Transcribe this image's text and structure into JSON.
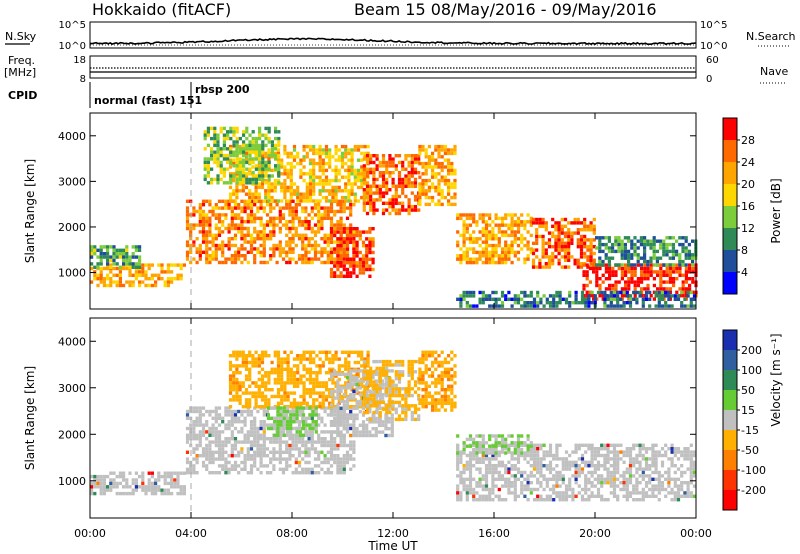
{
  "header": {
    "radar": "Hokkaido (fitACF)",
    "beam": "Beam 15 08/May/2016 - 09/May/2016"
  },
  "summary": {
    "nsky_label": "N.Sky",
    "nsky_ticks": [
      "10^5",
      "10^0"
    ],
    "nsearch_label": "N.Search",
    "nsearch_ticks": [
      "10^5",
      "10^0"
    ],
    "freq_label_line1": "Freq.",
    "freq_label_line2": "[MHz]",
    "freq_ticks": [
      "18",
      "8"
    ],
    "nave_label": "Nave",
    "nave_ticks": [
      "60",
      "0"
    ],
    "cpid_label": "CPID",
    "cpid_segments": [
      {
        "label": "normal (fast) 151",
        "start_hour": 0,
        "end_hour": 3.9
      },
      {
        "label": "rbsp 200",
        "start_hour": 3.9,
        "end_hour": 24
      }
    ]
  },
  "colors": {
    "power": [
      "#0000ff",
      "#1f4e9a",
      "#2e8b57",
      "#7ccd3c",
      "#ffd700",
      "#ffa500",
      "#ff6a00",
      "#ff0000"
    ],
    "velocity": [
      "#1a2fb0",
      "#2f5fa0",
      "#2e8b57",
      "#66cc33",
      "#c0c0c0",
      "#ffb000",
      "#ff7f00",
      "#ff3300",
      "#ff0000"
    ],
    "ground_scatter": "#c0c0c0"
  },
  "chart_data": [
    {
      "type": "heatmap",
      "panel": "power",
      "ylabel": "Slant Range [km]",
      "yticks": [
        "1000",
        "2000",
        "3000",
        "4000"
      ],
      "ylim": [
        200,
        4500
      ],
      "xlim_hours": [
        0,
        24
      ],
      "colorbar_label": "Power [dB]",
      "colorbar_ticks": [
        "28",
        "24",
        "20",
        "16",
        "12",
        "8",
        "4"
      ],
      "colorbar_range": [
        0,
        32
      ],
      "scatter_regions": [
        {
          "hour_start": 0.0,
          "hour_end": 3.8,
          "range_min": 700,
          "range_max": 1200,
          "level": 22
        },
        {
          "hour_start": 0.0,
          "hour_end": 2.0,
          "range_min": 1150,
          "range_max": 1600,
          "level": 12
        },
        {
          "hour_start": 3.8,
          "hour_end": 10.5,
          "range_min": 1200,
          "range_max": 2600,
          "level": 24
        },
        {
          "hour_start": 5.5,
          "hour_end": 11.0,
          "range_min": 2600,
          "range_max": 3800,
          "level": 20
        },
        {
          "hour_start": 4.5,
          "hour_end": 7.5,
          "range_min": 3000,
          "range_max": 4200,
          "level": 14
        },
        {
          "hour_start": 9.5,
          "hour_end": 11.2,
          "range_min": 900,
          "range_max": 2000,
          "level": 28
        },
        {
          "hour_start": 10.8,
          "hour_end": 13.0,
          "range_min": 2300,
          "range_max": 3600,
          "level": 26
        },
        {
          "hour_start": 13.0,
          "hour_end": 14.4,
          "range_min": 2500,
          "range_max": 3800,
          "level": 22
        },
        {
          "hour_start": 14.5,
          "hour_end": 17.5,
          "range_min": 1200,
          "range_max": 2300,
          "level": 22
        },
        {
          "hour_start": 17.5,
          "hour_end": 20.0,
          "range_min": 1100,
          "range_max": 2200,
          "level": 26
        },
        {
          "hour_start": 19.5,
          "hour_end": 24.0,
          "range_min": 400,
          "range_max": 1200,
          "level": 30
        },
        {
          "hour_start": 20.0,
          "hour_end": 24.0,
          "range_min": 1200,
          "range_max": 1800,
          "level": 10
        },
        {
          "hour_start": 14.5,
          "hour_end": 24.0,
          "range_min": 250,
          "range_max": 600,
          "level": 8
        }
      ]
    },
    {
      "type": "heatmap",
      "panel": "velocity",
      "ylabel": "Slant Range [km]",
      "yticks": [
        "1000",
        "2000",
        "3000",
        "4000"
      ],
      "ylim": [
        200,
        4500
      ],
      "xlim_hours": [
        0,
        24
      ],
      "xticks": [
        "00:00",
        "04:00",
        "08:00",
        "12:00",
        "16:00",
        "20:00",
        "00:00"
      ],
      "xlabel": "Time UT",
      "colorbar_label": "Velocity [m s⁻¹]",
      "colorbar_ticks": [
        "200",
        "100",
        "50",
        "15",
        "-15",
        "-50",
        "-100",
        "-200"
      ],
      "colorbar_range": [
        -250,
        250
      ],
      "scatter_regions": [
        {
          "hour_start": 0.0,
          "hour_end": 3.8,
          "range_min": 700,
          "range_max": 1200,
          "ground": true
        },
        {
          "hour_start": 3.8,
          "hour_end": 10.5,
          "range_min": 1200,
          "range_max": 2600,
          "ground": true
        },
        {
          "hour_start": 5.5,
          "hour_end": 11.0,
          "range_min": 2600,
          "range_max": 3800,
          "velocity": -60
        },
        {
          "hour_start": 9.5,
          "hour_end": 12.0,
          "range_min": 2000,
          "range_max": 3400,
          "ground": true
        },
        {
          "hour_start": 10.8,
          "hour_end": 13.0,
          "range_min": 2300,
          "range_max": 3600,
          "velocity": -40
        },
        {
          "hour_start": 13.0,
          "hour_end": 14.4,
          "range_min": 2500,
          "range_max": 3800,
          "velocity": -70
        },
        {
          "hour_start": 14.5,
          "hour_end": 24.0,
          "range_min": 600,
          "range_max": 1800,
          "ground": true
        },
        {
          "hour_start": 7.0,
          "hour_end": 9.0,
          "range_min": 2000,
          "range_max": 2600,
          "velocity": 40
        },
        {
          "hour_start": 14.5,
          "hour_end": 17.5,
          "range_min": 1600,
          "range_max": 2000,
          "velocity": 30
        }
      ]
    }
  ]
}
